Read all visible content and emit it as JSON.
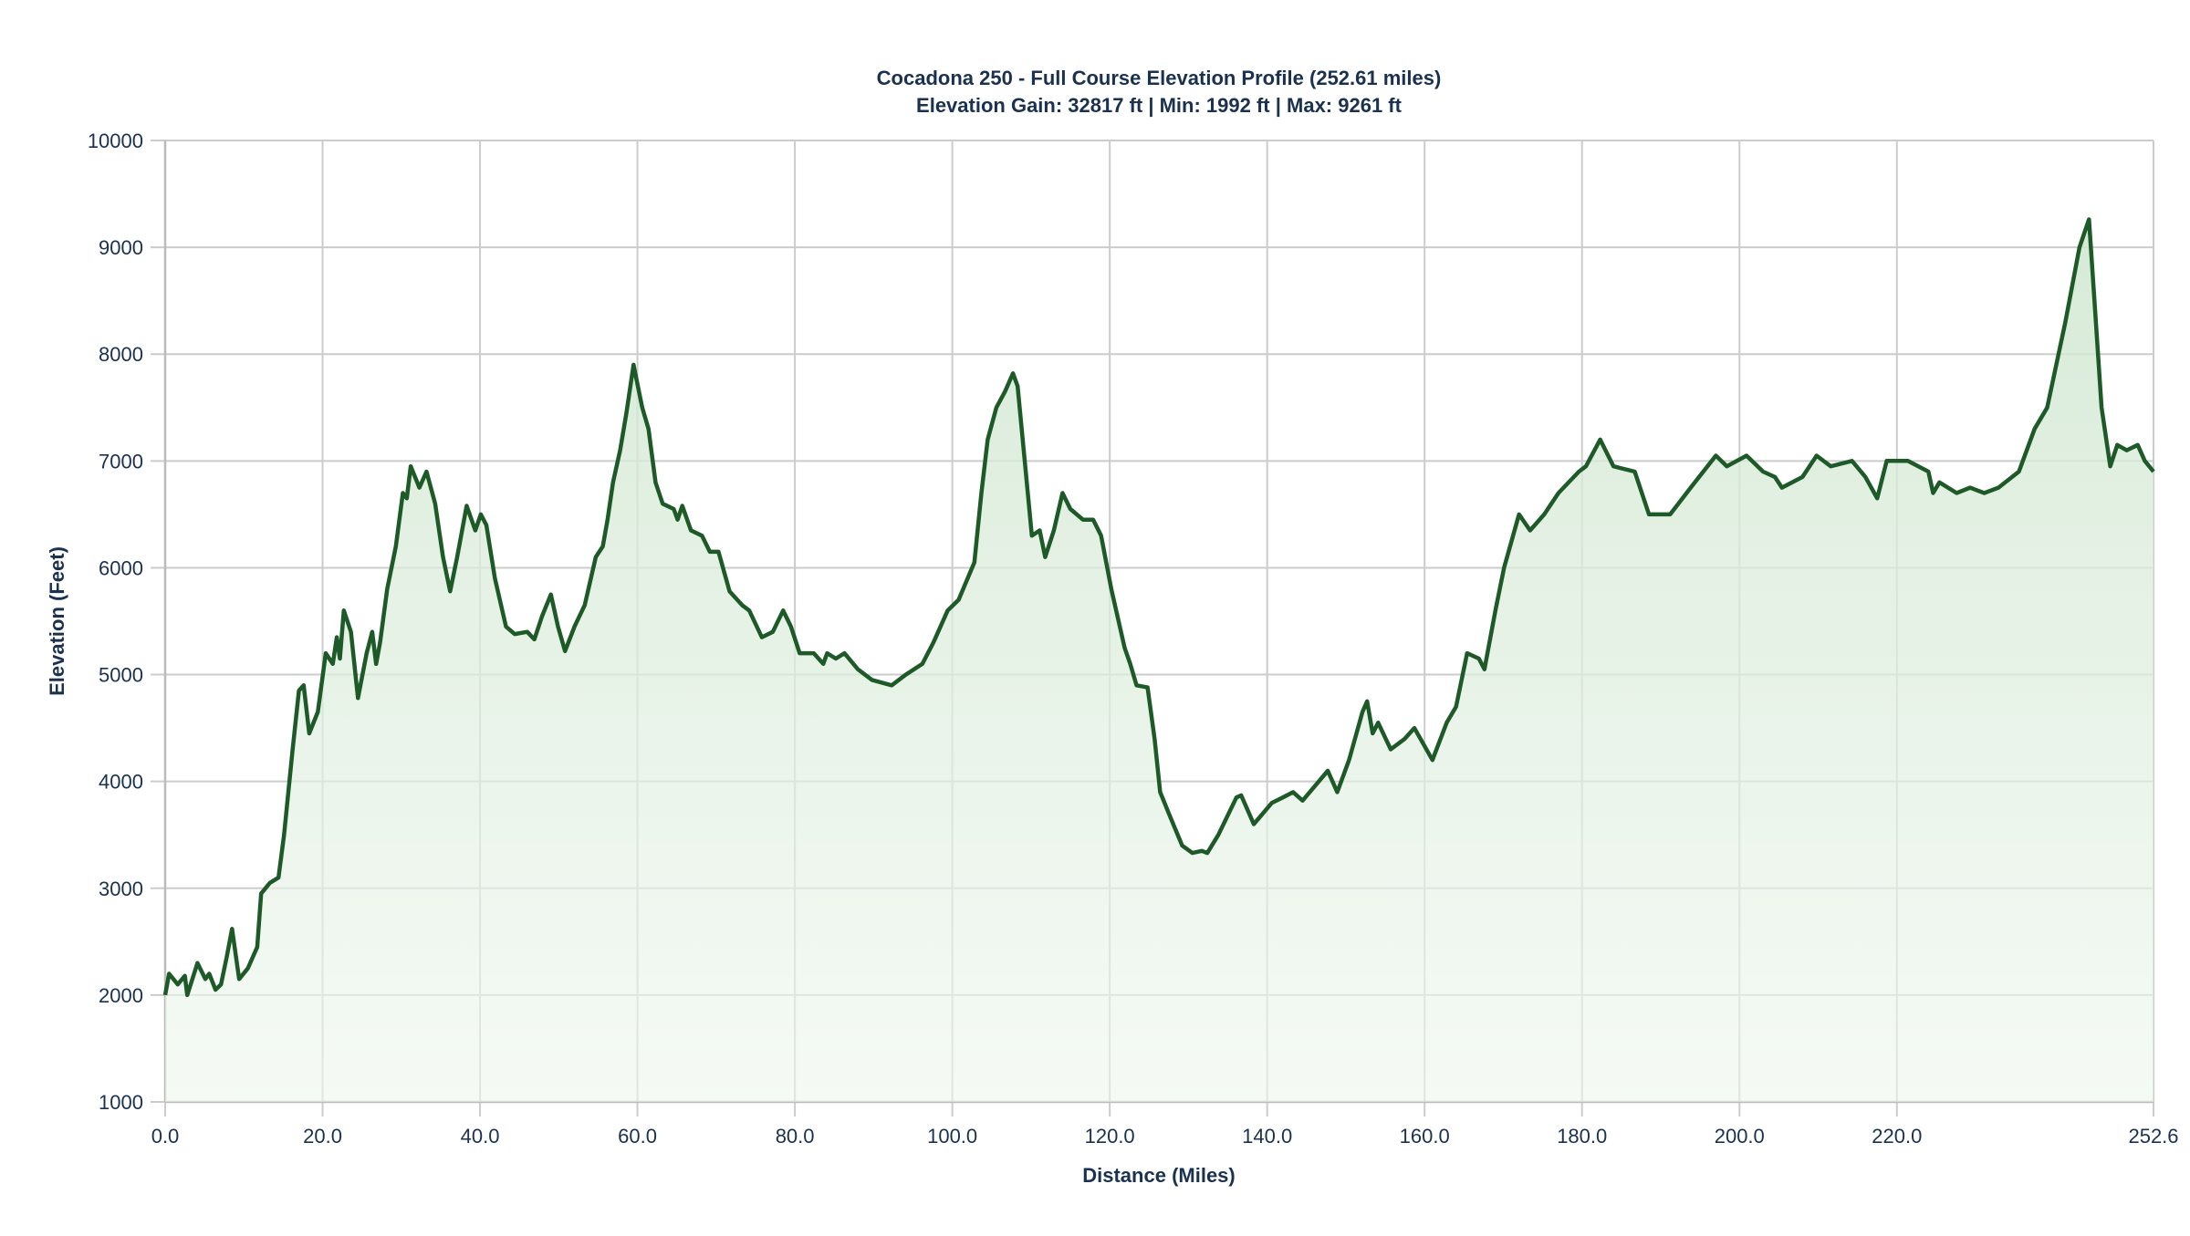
{
  "chart_data": {
    "type": "area",
    "title": "Cocadona 250 - Full Course Elevation Profile (252.61 miles)",
    "subtitle": "Elevation Gain: 32817 ft | Min: 1992 ft | Max: 9261 ft",
    "xlabel": "Distance (Miles)",
    "ylabel": "Elevation (Feet)",
    "xlim": [
      0,
      252.6
    ],
    "ylim": [
      1000,
      10000
    ],
    "x_ticks": [
      "0.0",
      "20.0",
      "40.0",
      "60.0",
      "80.0",
      "100.0",
      "120.0",
      "140.0",
      "160.0",
      "180.0",
      "200.0",
      "220.0",
      "252.6"
    ],
    "x_tick_values": [
      0,
      20,
      40,
      60,
      80,
      100,
      120,
      140,
      160,
      180,
      200,
      220,
      252.6
    ],
    "y_ticks": [
      "1000",
      "2000",
      "3000",
      "4000",
      "5000",
      "6000",
      "7000",
      "8000",
      "9000",
      "10000"
    ],
    "grid": true,
    "colors": {
      "line": "#1e5a28",
      "fill": "#d6ead6",
      "text": "#1a3150"
    },
    "x": [
      0,
      0.5,
      1.6,
      2.5,
      2.8,
      4.1,
      5.1,
      5.6,
      6.4,
      7.1,
      7.8,
      8.5,
      9.4,
      10.5,
      11.7,
      12.2,
      13.3,
      14.4,
      15.1,
      16.2,
      17,
      17.6,
      18.3,
      19.4,
      20.4,
      21.3,
      21.8,
      22.2,
      22.7,
      23.6,
      24.5,
      25.6,
      26.3,
      26.8,
      27.3,
      28.2,
      29.3,
      30.2,
      30.7,
      31.2,
      32.3,
      33.2,
      34.3,
      35.3,
      36.2,
      37.1,
      38.3,
      39.4,
      40.1,
      40.8,
      41.9,
      43.3,
      44.4,
      46,
      46.9,
      47.9,
      49,
      49.9,
      50.8,
      52,
      53.3,
      54.7,
      55.6,
      56.2,
      56.9,
      57.8,
      58.6,
      59.5,
      60.6,
      61.4,
      62.3,
      63.2,
      64.6,
      65.1,
      65.7,
      66.8,
      68.2,
      69.2,
      70.3,
      71.7,
      73.3,
      74.2,
      75.8,
      77.2,
      78.5,
      79.5,
      80.6,
      82.4,
      83.6,
      84.1,
      85.2,
      86.3,
      88,
      89.8,
      92.3,
      94.1,
      96.2,
      97.6,
      99.4,
      100.8,
      102.8,
      103.7,
      104.5,
      105.6,
      106.7,
      107.7,
      108.3,
      109.2,
      110.1,
      111.1,
      111.8,
      112.9,
      114,
      115,
      116.6,
      117.9,
      118.9,
      120.2,
      121.9,
      122.6,
      123.4,
      124.8,
      125.7,
      126.4,
      127.5,
      129.2,
      130.5,
      131.7,
      132.4,
      133.8,
      136.1,
      136.7,
      138.3,
      140.6,
      142,
      143.3,
      144.5,
      147.7,
      148.9,
      150.4,
      152.1,
      152.7,
      153.4,
      154.1,
      155.7,
      157.5,
      158.7,
      161,
      162.8,
      164,
      165.4,
      166.9,
      167.6,
      169,
      170.1,
      172,
      173.4,
      175.2,
      177,
      179.6,
      180.5,
      182.3,
      184,
      186.7,
      188.5,
      191.2,
      193.8,
      197,
      198.4,
      200.9,
      203,
      204.5,
      205.4,
      208,
      209.8,
      211.6,
      214.3,
      216,
      217.5,
      218.7,
      221.4,
      224,
      224.6,
      225.4,
      227.6,
      229.3,
      231.1,
      232.9,
      235.5,
      237.5,
      239.1,
      241.4,
      243.2,
      244.4,
      245.1,
      246,
      247.1,
      248,
      249.2,
      250.6,
      251.5,
      252.6
    ],
    "y": [
      2000,
      2200,
      2100,
      2180,
      2000,
      2300,
      2150,
      2200,
      2050,
      2100,
      2350,
      2620,
      2150,
      2250,
      2450,
      2950,
      3050,
      3100,
      3500,
      4300,
      4850,
      4900,
      4450,
      4650,
      5200,
      5100,
      5350,
      5150,
      5600,
      5400,
      4780,
      5200,
      5400,
      5100,
      5300,
      5800,
      6200,
      6700,
      6650,
      6950,
      6750,
      6900,
      6600,
      6100,
      5780,
      6100,
      6580,
      6350,
      6500,
      6400,
      5900,
      5450,
      5380,
      5400,
      5330,
      5550,
      5750,
      5450,
      5220,
      5450,
      5650,
      6100,
      6200,
      6450,
      6800,
      7100,
      7450,
      7900,
      7500,
      7300,
      6800,
      6600,
      6550,
      6450,
      6580,
      6350,
      6300,
      6150,
      6150,
      5780,
      5650,
      5600,
      5350,
      5400,
      5600,
      5450,
      5200,
      5200,
      5100,
      5200,
      5150,
      5200,
      5050,
      4950,
      4900,
      5000,
      5100,
      5300,
      5600,
      5700,
      6050,
      6700,
      7200,
      7500,
      7650,
      7820,
      7700,
      7000,
      6300,
      6350,
      6100,
      6350,
      6700,
      6550,
      6450,
      6450,
      6300,
      5800,
      5250,
      5100,
      4900,
      4880,
      4400,
      3900,
      3700,
      3400,
      3330,
      3350,
      3330,
      3500,
      3850,
      3870,
      3600,
      3800,
      3850,
      3900,
      3820,
      4100,
      3900,
      4200,
      4650,
      4750,
      4450,
      4550,
      4300,
      4400,
      4500,
      4200,
      4550,
      4700,
      5200,
      5150,
      5050,
      5600,
      6000,
      6500,
      6350,
      6500,
      6700,
      6900,
      6950,
      7200,
      6950,
      6900,
      6500,
      6500,
      6750,
      7050,
      6950,
      7050,
      6900,
      6850,
      6750,
      6850,
      7050,
      6950,
      7000,
      6850,
      6650,
      7000,
      7000,
      6900,
      6700,
      6800,
      6700,
      6750,
      6700,
      6750,
      6900,
      7300,
      7500,
      8300,
      9000,
      9261,
      8500,
      7500,
      6950,
      7150,
      7100,
      7150,
      7000,
      6900
    ]
  }
}
